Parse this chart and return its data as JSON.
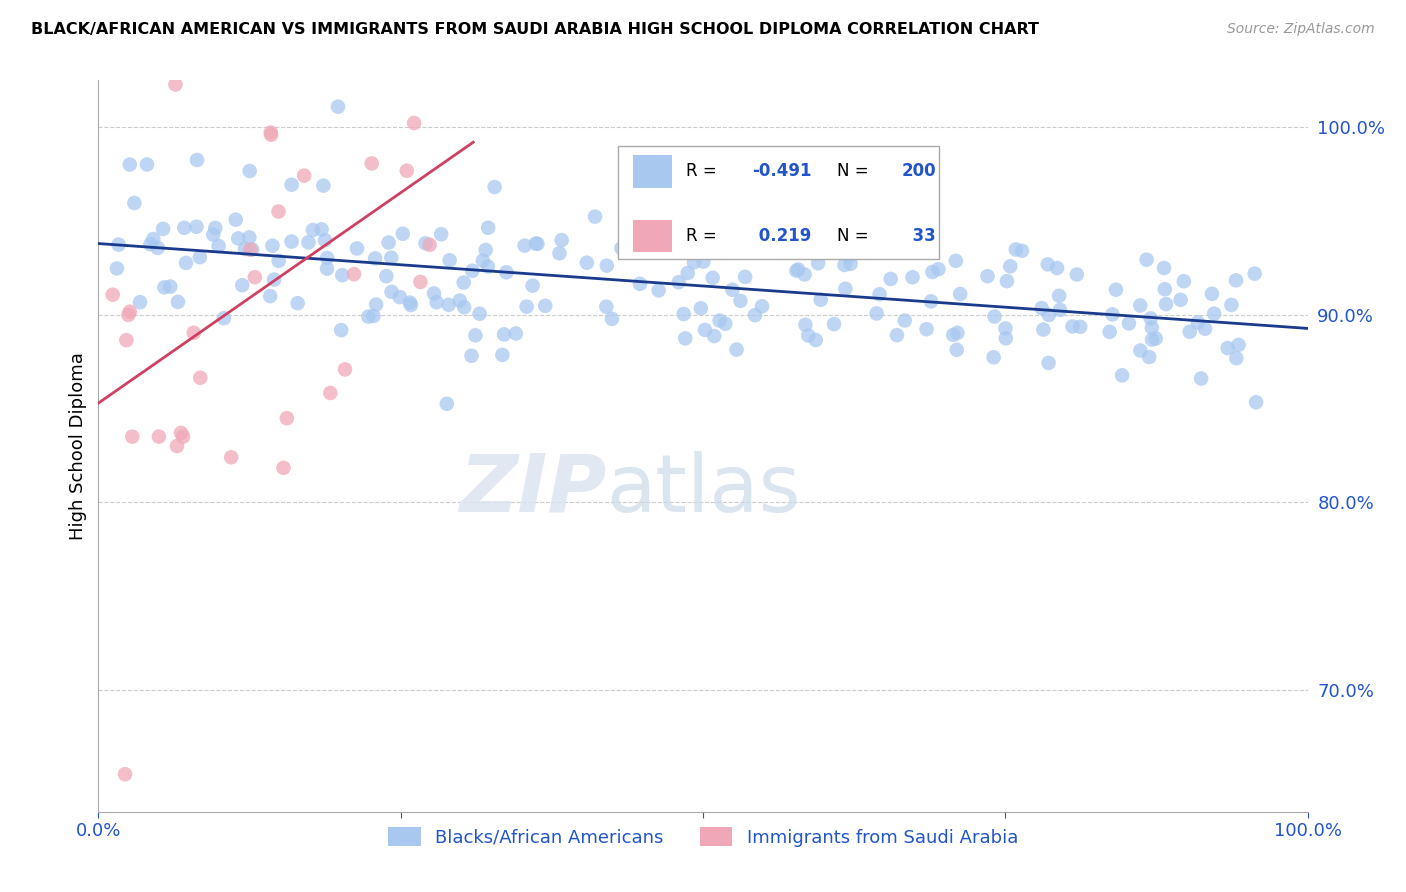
{
  "title": "BLACK/AFRICAN AMERICAN VS IMMIGRANTS FROM SAUDI ARABIA HIGH SCHOOL DIPLOMA CORRELATION CHART",
  "source": "Source: ZipAtlas.com",
  "ylabel": "High School Diploma",
  "xlim": [
    0.0,
    1.0
  ],
  "ylim": [
    0.635,
    1.025
  ],
  "yticks": [
    0.7,
    0.8,
    0.9,
    1.0
  ],
  "ytick_labels": [
    "70.0%",
    "80.0%",
    "90.0%",
    "100.0%"
  ],
  "blue_R": -0.491,
  "blue_N": 200,
  "pink_R": 0.219,
  "pink_N": 33,
  "blue_color": "#a8c8f0",
  "pink_color": "#f0a8b8",
  "blue_line_color": "#1a3a8c",
  "pink_line_color": "#d04060",
  "watermark_zip": "ZIP",
  "watermark_atlas": "atlas",
  "legend_label_blue": "Blacks/African Americans",
  "legend_label_pink": "Immigrants from Saudi Arabia",
  "tick_color": "#2255cc"
}
